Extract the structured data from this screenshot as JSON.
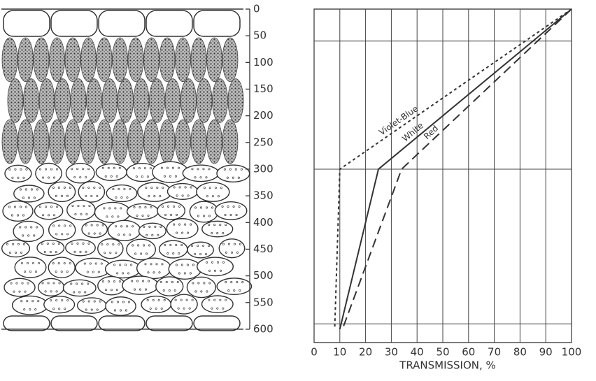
{
  "chart_data": {
    "type": "line",
    "xlabel": "TRANSMISSION, %",
    "xlim": [
      0,
      100
    ],
    "xticks": [
      0,
      10,
      20,
      30,
      40,
      50,
      60,
      70,
      80,
      90,
      100
    ],
    "ylim": [
      0,
      625
    ],
    "yticks": [
      0,
      50,
      100,
      150,
      200,
      250,
      300,
      350,
      400,
      450,
      500,
      550,
      600
    ],
    "y": [
      0,
      300,
      600
    ],
    "layer_boundaries": [
      60,
      300,
      590
    ],
    "grid": true,
    "series": [
      {
        "name": "Violet-Blue",
        "color": "#333333",
        "dash": "4,4",
        "values": [
          100,
          10,
          8
        ]
      },
      {
        "name": "White",
        "color": "#333333",
        "dash": "none",
        "values": [
          100,
          25,
          10
        ]
      },
      {
        "name": "Red",
        "color": "#333333",
        "dash": "13,7",
        "values": [
          100,
          34,
          11
        ]
      }
    ]
  }
}
